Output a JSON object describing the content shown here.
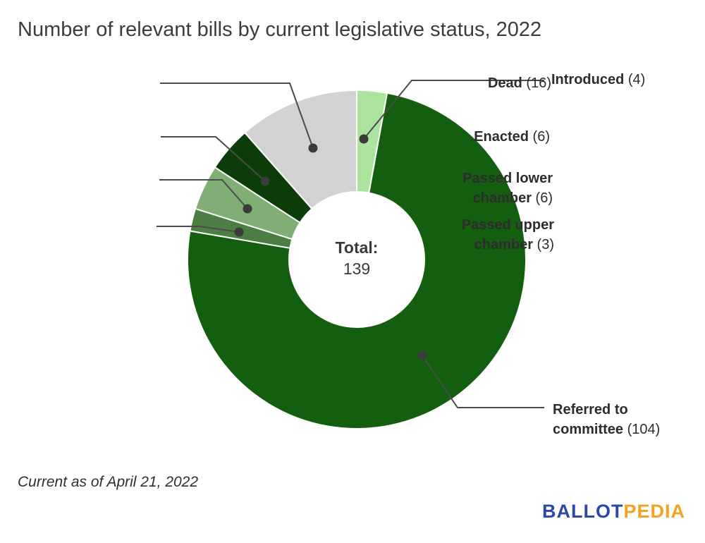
{
  "title": "Number of relevant bills by current legislative status, 2022",
  "footnote": "Current as of April 21, 2022",
  "logo": {
    "part1": "BALLOT",
    "part2": "PEDIA",
    "blue": "#2d49a7",
    "orange": "#f2a41f"
  },
  "center": {
    "label": "Total:",
    "value": "139"
  },
  "chart_data": {
    "type": "pie",
    "donut": true,
    "title": "Number of relevant bills by current legislative status, 2022",
    "total": 139,
    "start_angle_deg": 0,
    "direction": "clockwise",
    "center_label": "Total:",
    "center_value": 139,
    "separator_color": "#ffffff",
    "leader_line_color": "#4b4b4b",
    "leader_dot_color": "#3b3b3b",
    "segments": [
      {
        "label": "Introduced",
        "value": 4,
        "color": "#abe59d"
      },
      {
        "label": "Referred to committee",
        "value": 104,
        "color": "#145f0f"
      },
      {
        "label": "Passed upper chamber",
        "value": 3,
        "color": "#4c7e43"
      },
      {
        "label": "Passed lower chamber",
        "value": 6,
        "color": "#80ae75"
      },
      {
        "label": "Enacted",
        "value": 6,
        "color": "#0c3c07"
      },
      {
        "label": "Dead",
        "value": 16,
        "color": "#d2d2d2"
      }
    ]
  }
}
